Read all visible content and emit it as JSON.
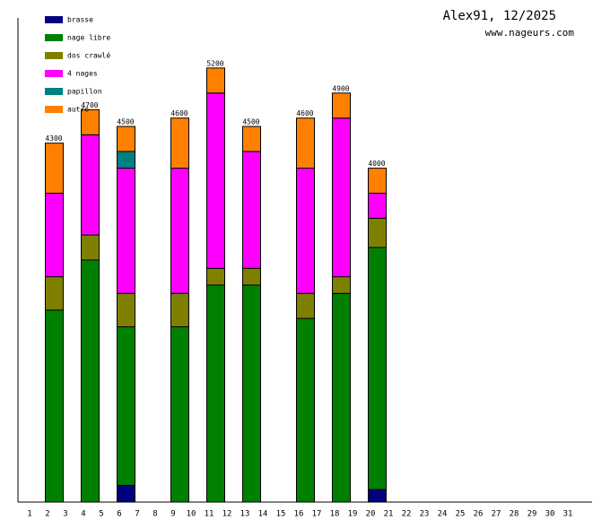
{
  "chart_data": {
    "type": "stacked_bar",
    "title": "Alex91, 12/2025",
    "subtitle": "www.nageurs.com",
    "categories": [
      "1",
      "2",
      "3",
      "4",
      "5",
      "6",
      "7",
      "8",
      "9",
      "10",
      "11",
      "12",
      "13",
      "14",
      "15",
      "16",
      "17",
      "18",
      "19",
      "20",
      "21",
      "22",
      "23",
      "24",
      "25",
      "26",
      "27",
      "28",
      "29",
      "30",
      "31"
    ],
    "series": [
      {
        "name": "brasse",
        "color": "#000080",
        "values": [
          null,
          null,
          null,
          null,
          null,
          200,
          null,
          null,
          null,
          null,
          null,
          null,
          null,
          null,
          null,
          null,
          null,
          null,
          null,
          150,
          null,
          null,
          null,
          null,
          null,
          null,
          null,
          null,
          null,
          null,
          null
        ]
      },
      {
        "name": "nage libre",
        "color": "#008000",
        "values": [
          null,
          2300,
          null,
          2900,
          null,
          1900,
          null,
          null,
          2100,
          null,
          2600,
          null,
          2600,
          null,
          null,
          2200,
          null,
          2500,
          null,
          2900,
          null,
          null,
          null,
          null,
          null,
          null,
          null,
          null,
          null,
          null,
          null
        ]
      },
      {
        "name": "dos crawlé",
        "color": "#808000",
        "values": [
          null,
          400,
          null,
          300,
          null,
          400,
          null,
          null,
          400,
          null,
          200,
          null,
          200,
          null,
          null,
          300,
          null,
          200,
          null,
          350,
          null,
          null,
          null,
          null,
          null,
          null,
          null,
          null,
          null,
          null,
          null
        ]
      },
      {
        "name": "4 nages",
        "color": "#ff00ff",
        "values": [
          null,
          1000,
          null,
          1200,
          null,
          1500,
          null,
          null,
          1500,
          null,
          2100,
          null,
          1400,
          null,
          null,
          1500,
          null,
          1900,
          null,
          300,
          null,
          null,
          null,
          null,
          null,
          null,
          null,
          null,
          null,
          null,
          null
        ]
      },
      {
        "name": "papillon",
        "color": "#008080",
        "values": [
          null,
          null,
          null,
          null,
          null,
          200,
          null,
          null,
          null,
          null,
          null,
          null,
          null,
          null,
          null,
          null,
          null,
          null,
          null,
          null,
          null,
          null,
          null,
          null,
          null,
          null,
          null,
          null,
          null,
          null,
          null
        ]
      },
      {
        "name": "autre",
        "color": "#ff8000",
        "values": [
          null,
          600,
          null,
          300,
          null,
          300,
          null,
          null,
          600,
          null,
          300,
          null,
          300,
          null,
          null,
          600,
          null,
          300,
          null,
          300,
          null,
          null,
          null,
          null,
          null,
          null,
          null,
          null,
          null,
          null,
          null
        ]
      }
    ],
    "totals": [
      null,
      4300,
      null,
      4700,
      null,
      4500,
      null,
      null,
      4600,
      null,
      5200,
      null,
      4500,
      null,
      null,
      4600,
      null,
      4900,
      null,
      4000,
      null,
      null,
      null,
      null,
      null,
      null,
      null,
      null,
      null,
      null,
      null
    ],
    "ylim": [
      0,
      5800
    ]
  }
}
